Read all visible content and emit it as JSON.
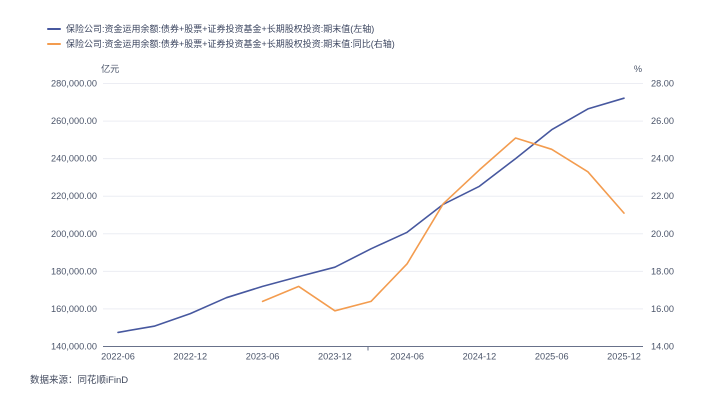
{
  "legend": {
    "items": [
      {
        "label": "保险公司:资金运用余额:债券+股票+证券投资基金+长期股权投资:期末值(左轴)",
        "color": "#47589f"
      },
      {
        "label": "保险公司:资金运用余额:债券+股票+证券投资基金+长期股权投资:期末值:同比(右轴)",
        "color": "#f39c4f"
      }
    ]
  },
  "footer": {
    "source": "数据来源：同花顺iFinD"
  },
  "chart_data": {
    "type": "line",
    "x": [
      "2022-06",
      "2022-09",
      "2022-12",
      "2023-03",
      "2023-06",
      "2023-09",
      "2023-12",
      "2024-03",
      "2024-06",
      "2024-09",
      "2024-12",
      "2025-03",
      "2025-06",
      "2025-09",
      "2025-12"
    ],
    "x_axis_labels": [
      "2022-06",
      "2022-12",
      "2023-06",
      "2023-12",
      "2024-06",
      "2024-12",
      "2025-06",
      "2025-12"
    ],
    "x_label_indices": [
      0,
      2,
      4,
      6,
      8,
      10,
      12,
      14
    ],
    "left_axis": {
      "unit": "亿元",
      "min": 140000,
      "max": 280000,
      "step": 20000,
      "tick_labels": [
        "280,000.00",
        "260,000.00",
        "240,000.00",
        "220,000.00",
        "200,000.00",
        "180,000.00",
        "160,000.00",
        "140,000.00"
      ]
    },
    "right_axis": {
      "unit": "%",
      "min": 14,
      "max": 28,
      "step": 2,
      "tick_labels": [
        "28.00",
        "26.00",
        "24.00",
        "22.00",
        "20.00",
        "18.00",
        "16.00",
        "14.00"
      ]
    },
    "series": [
      {
        "name": "保险公司:资金运用余额:债券+股票+证券投资基金+长期股权投资:期末值(左轴)",
        "axis": "left",
        "color": "#47589f",
        "values": [
          147500,
          150800,
          157500,
          166000,
          172000,
          177200,
          182200,
          192000,
          200800,
          215700,
          225300,
          240000,
          255400,
          266500,
          272200
        ]
      },
      {
        "name": "保险公司:资金运用余额:债券+股票+证券投资基金+长期股权投资:期末值:同比(右轴)",
        "axis": "right",
        "color": "#f39c4f",
        "values": [
          null,
          null,
          null,
          null,
          16.4,
          17.2,
          15.9,
          16.4,
          18.4,
          21.6,
          23.4,
          25.1,
          24.5,
          23.3,
          21.1
        ]
      }
    ],
    "grid": true,
    "legend_position": "top-left",
    "colors": {
      "grid_line": "#ecedf3",
      "axis_line": "#68718a",
      "axis_text": "#4c566b"
    }
  }
}
